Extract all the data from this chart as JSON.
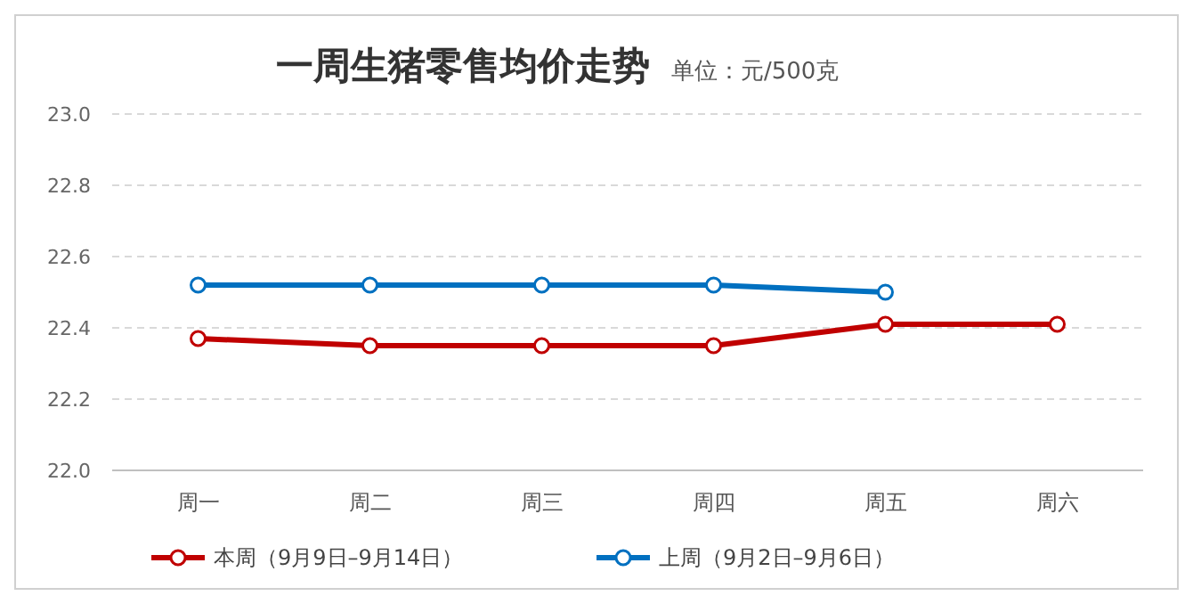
{
  "chart_data": {
    "type": "line",
    "title": "一周生猪零售均价走势",
    "subtitle": "单位：元/500克",
    "categories": [
      "周一",
      "周二",
      "周三",
      "周四",
      "周五",
      "周六"
    ],
    "series": [
      {
        "name": "本周（9月9日–9月14日）",
        "color": "#c00000",
        "values": [
          22.37,
          22.35,
          22.35,
          22.35,
          22.41,
          22.41
        ]
      },
      {
        "name": "上周（9月2日–9月6日）",
        "color": "#0070c0",
        "values": [
          22.52,
          22.52,
          22.52,
          22.52,
          22.5,
          null
        ]
      }
    ],
    "ylim": [
      22.0,
      23.0
    ],
    "yticks": [
      {
        "value": 22.0,
        "label": "22.0"
      },
      {
        "value": 22.2,
        "label": "22.2"
      },
      {
        "value": 22.4,
        "label": "22.4"
      },
      {
        "value": 22.6,
        "label": "22.6"
      },
      {
        "value": 22.8,
        "label": "22.8"
      },
      {
        "value": 23.0,
        "label": "23.0"
      }
    ],
    "grid": "y",
    "legend": "bottom",
    "marker": "circle",
    "line_style": "solid"
  }
}
